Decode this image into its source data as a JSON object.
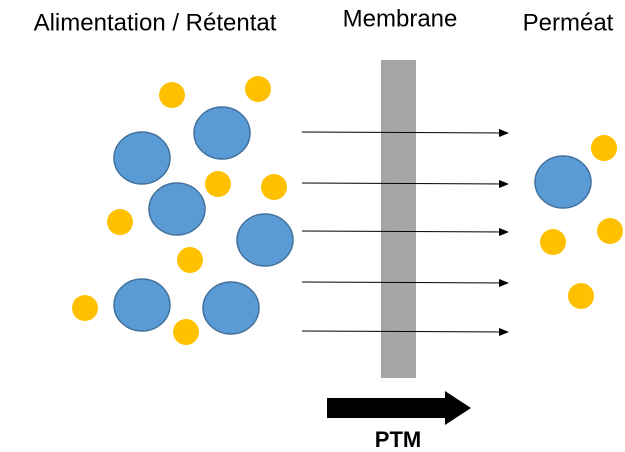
{
  "labels": {
    "feed": "Alimentation / Rétentat",
    "membrane": "Membrane",
    "permeate": "Perméat",
    "pressure": "PTM"
  }
}
